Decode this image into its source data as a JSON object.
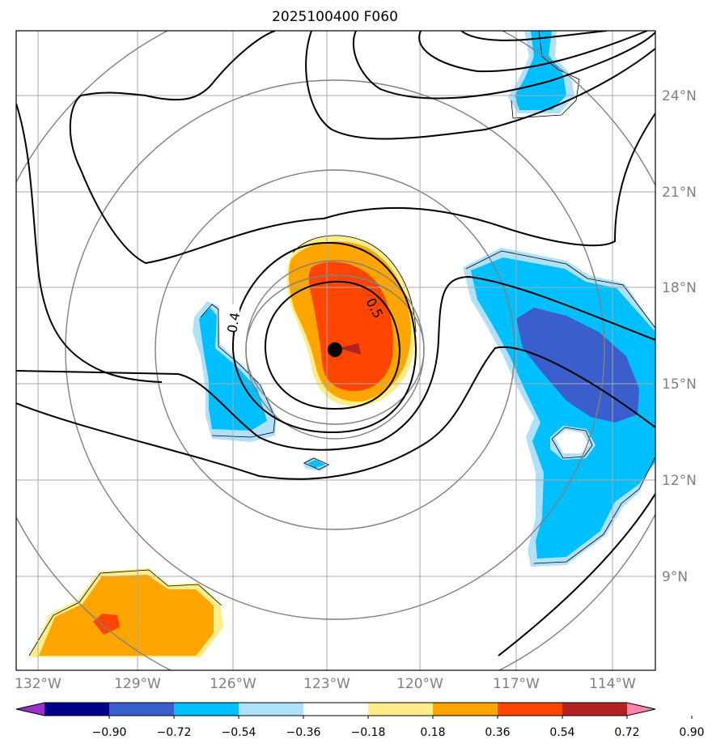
{
  "title": "2025100400 F060",
  "longitude_ticks": [
    "132°W",
    "129°W",
    "126°W",
    "123°W",
    "120°W",
    "117°W",
    "114°W"
  ],
  "latitude_ticks": [
    "24°N",
    "21°N",
    "18°N",
    "15°N",
    "12°N",
    "9°N"
  ],
  "colorbar": {
    "labels": [
      "−0.90",
      "−0.72",
      "−0.54",
      "−0.36",
      "−0.18",
      "0.18",
      "0.36",
      "0.54",
      "0.72",
      "0.90"
    ],
    "colors": [
      "#9932cc",
      "#00008b",
      "#3a5fcd",
      "#00bfff",
      "#b0e0fa",
      "#ffffff",
      "#ffec8b",
      "#ffa500",
      "#ff4500",
      "#b22222",
      "#ff82ab"
    ]
  },
  "contour_labels": [
    "0.4",
    "0.5"
  ],
  "colors": {
    "grid": "#a9a9a9",
    "range_rings": "#808080",
    "contour": "#000000",
    "center_marker": "#000000"
  }
}
